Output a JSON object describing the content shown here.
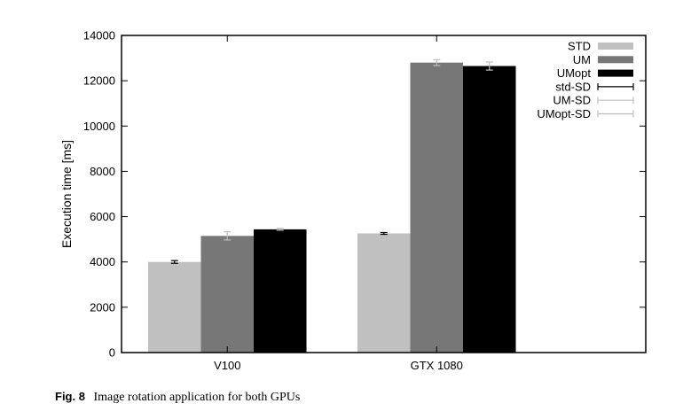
{
  "chart_data": {
    "type": "bar",
    "ylabel": "Execution time [ms]",
    "xlabel": "",
    "ylim": [
      0,
      14000
    ],
    "yticks": [
      0,
      2000,
      4000,
      6000,
      8000,
      10000,
      12000,
      14000
    ],
    "categories": [
      "V100",
      "GTX 1080"
    ],
    "series": [
      {
        "name": "STD",
        "values": [
          4000,
          5260
        ],
        "errors": [
          60,
          40
        ],
        "color": "#c0c0c0",
        "error_color": "#000000"
      },
      {
        "name": "UM",
        "values": [
          5150,
          12800
        ],
        "errors": [
          180,
          130
        ],
        "color": "#777777",
        "error_color": "#bdbdbd"
      },
      {
        "name": "UMopt",
        "values": [
          5440,
          12650
        ],
        "errors": [
          40,
          180
        ],
        "color": "#000000",
        "error_color": "#bdbdbd"
      }
    ],
    "error_legend": [
      {
        "name": "std-SD",
        "color": "#000000"
      },
      {
        "name": "UM-SD",
        "color": "#bdbdbd"
      },
      {
        "name": "UMopt-SD",
        "color": "#bdbdbd"
      }
    ],
    "legend_position": "top-right",
    "grid": false
  },
  "caption": {
    "label": "Fig. 8",
    "text": "Image rotation application for both GPUs"
  }
}
